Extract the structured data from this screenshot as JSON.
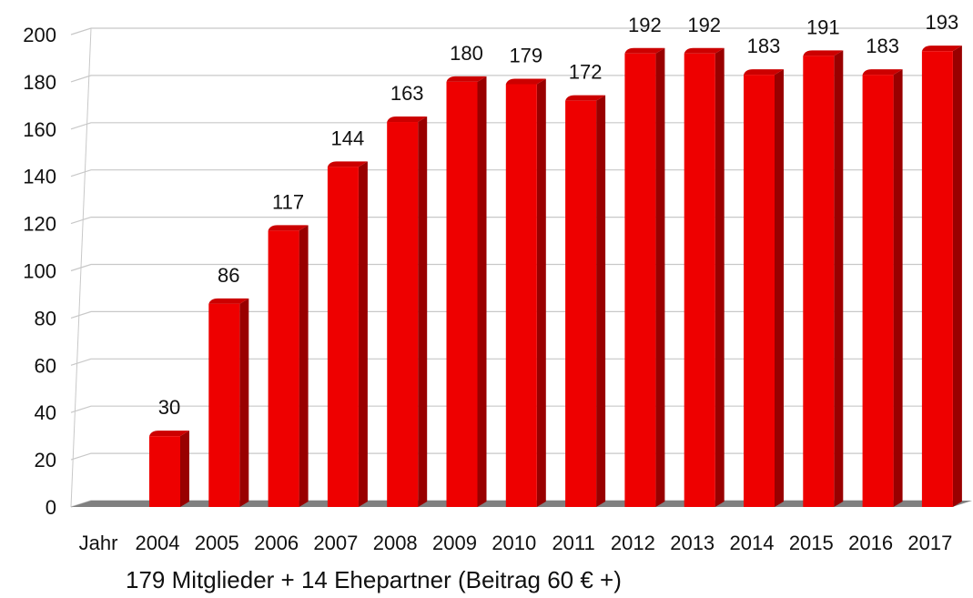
{
  "chart_data": {
    "type": "bar",
    "x_axis_prefix": "Jahr",
    "categories": [
      "2004",
      "2005",
      "2006",
      "2007",
      "2008",
      "2009",
      "2010",
      "2011",
      "2012",
      "2013",
      "2014",
      "2015",
      "2016",
      "2017"
    ],
    "values": [
      30,
      86,
      117,
      144,
      163,
      180,
      179,
      172,
      192,
      192,
      183,
      191,
      183,
      193
    ],
    "ylim": [
      0,
      200
    ],
    "yticks": [
      0,
      20,
      40,
      60,
      80,
      100,
      120,
      140,
      160,
      180,
      200
    ],
    "grid": true,
    "caption": "179 Mitglieder + 14 Ehepartner (Beitrag 60 € +)",
    "colors": {
      "bar_front": "#ee0000",
      "bar_side": "#990000",
      "bar_top": "#cc0000",
      "floor": "#808080",
      "grid": "#c8c8c8"
    }
  }
}
